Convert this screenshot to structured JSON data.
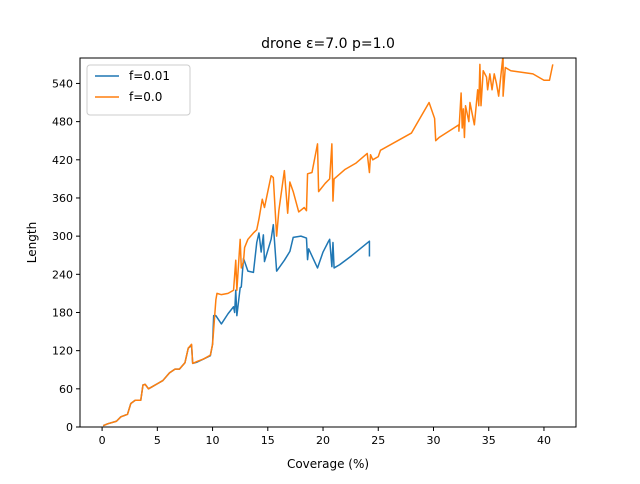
{
  "chart_data": {
    "type": "line",
    "title": "drone ε=7.0 p=1.0",
    "xlabel": "Coverage (%)",
    "ylabel": "Length",
    "xlim": [
      -2.0,
      42.9
    ],
    "ylim": [
      0,
      580
    ],
    "xticks": [
      0,
      5,
      10,
      15,
      20,
      25,
      30,
      35,
      40
    ],
    "yticks": [
      0,
      60,
      120,
      180,
      240,
      300,
      360,
      420,
      480,
      540
    ],
    "grid": false,
    "legend_position": "top-left",
    "series": [
      {
        "name": "f=0.01",
        "color": "#1f77b4",
        "x": [
          0.1,
          0.5,
          1.3,
          1.7,
          2.3,
          2.6,
          3.0,
          3.5,
          3.7,
          3.9,
          4.2,
          4.5,
          5.0,
          5.5,
          6.1,
          6.6,
          7.0,
          7.5,
          7.8,
          8.1,
          8.2,
          8.6,
          9.2,
          9.8,
          10.0,
          10.1,
          10.3,
          10.8,
          11.4,
          11.9,
          12.0,
          12.1,
          12.2,
          12.5,
          12.6,
          12.8,
          13.2,
          13.7,
          14.0,
          14.2,
          14.4,
          14.6,
          14.7,
          15.3,
          15.5,
          15.8,
          16.5,
          17.0,
          17.3,
          18.0,
          18.5,
          18.6,
          18.7,
          19.5,
          20.0,
          20.5,
          20.6,
          20.8,
          20.9,
          21.0,
          21.5,
          22.5,
          24.2,
          24.2
        ],
        "y": [
          2,
          5,
          9,
          16,
          20,
          37,
          42,
          42,
          66,
          67,
          60,
          63,
          68,
          73,
          85,
          91,
          91,
          101,
          124,
          128,
          100,
          102,
          107,
          112,
          130,
          175,
          175,
          162,
          178,
          189,
          180,
          215,
          175,
          219,
          220,
          265,
          245,
          243,
          290,
          305,
          275,
          302,
          260,
          295,
          318,
          245,
          262,
          276,
          298,
          300,
          297,
          263,
          280,
          250,
          275,
          292,
          295,
          252,
          290,
          250,
          255,
          268,
          292,
          268
        ]
      },
      {
        "name": "f=0.0",
        "color": "#ff7f0e",
        "x": [
          0.1,
          0.5,
          1.3,
          1.7,
          2.3,
          2.6,
          3.0,
          3.5,
          3.7,
          3.9,
          4.2,
          4.5,
          5.0,
          5.5,
          6.1,
          6.6,
          7.0,
          7.5,
          7.8,
          8.1,
          8.2,
          8.6,
          9.2,
          9.8,
          10.0,
          10.3,
          10.4,
          10.8,
          11.4,
          11.9,
          12.1,
          12.2,
          12.5,
          12.6,
          12.8,
          12.9,
          13.2,
          13.7,
          14.0,
          14.2,
          14.5,
          14.7,
          15.3,
          15.5,
          15.8,
          16.0,
          16.5,
          16.8,
          17.0,
          17.3,
          17.8,
          18.3,
          18.5,
          18.6,
          19.0,
          19.5,
          19.6,
          20.2,
          20.6,
          20.8,
          20.9,
          21.0,
          22.0,
          23.0,
          24.0,
          24.2,
          24.3,
          24.5,
          25.0,
          25.2,
          28.0,
          29.6,
          30.1,
          30.2,
          30.5,
          32.3,
          32.3,
          32.5,
          32.6,
          32.7,
          32.8,
          32.9,
          33.2,
          33.3,
          33.7,
          34.0,
          34.1,
          34.2,
          34.3,
          34.5,
          34.8,
          34.9,
          35.1,
          35.3,
          35.5,
          35.7,
          35.9,
          36.3,
          36.3,
          36.5,
          37.0,
          39.0,
          40.0,
          40.5,
          40.8
        ],
        "y": [
          2,
          5,
          9,
          16,
          20,
          37,
          42,
          42,
          66,
          67,
          60,
          63,
          68,
          73,
          85,
          91,
          91,
          101,
          124,
          130,
          100,
          103,
          107,
          113,
          130,
          200,
          210,
          208,
          210,
          215,
          262,
          215,
          295,
          250,
          260,
          282,
          295,
          305,
          310,
          327,
          358,
          345,
          395,
          392,
          300,
          340,
          403,
          336,
          385,
          370,
          338,
          345,
          340,
          398,
          400,
          445,
          370,
          383,
          390,
          445,
          355,
          390,
          405,
          415,
          430,
          400,
          428,
          420,
          425,
          435,
          462,
          510,
          485,
          450,
          455,
          475,
          465,
          525,
          470,
          500,
          455,
          505,
          480,
          510,
          475,
          530,
          505,
          570,
          505,
          560,
          550,
          530,
          555,
          530,
          555,
          540,
          520,
          585,
          520,
          565,
          560,
          555,
          545,
          545,
          570
        ]
      }
    ]
  }
}
